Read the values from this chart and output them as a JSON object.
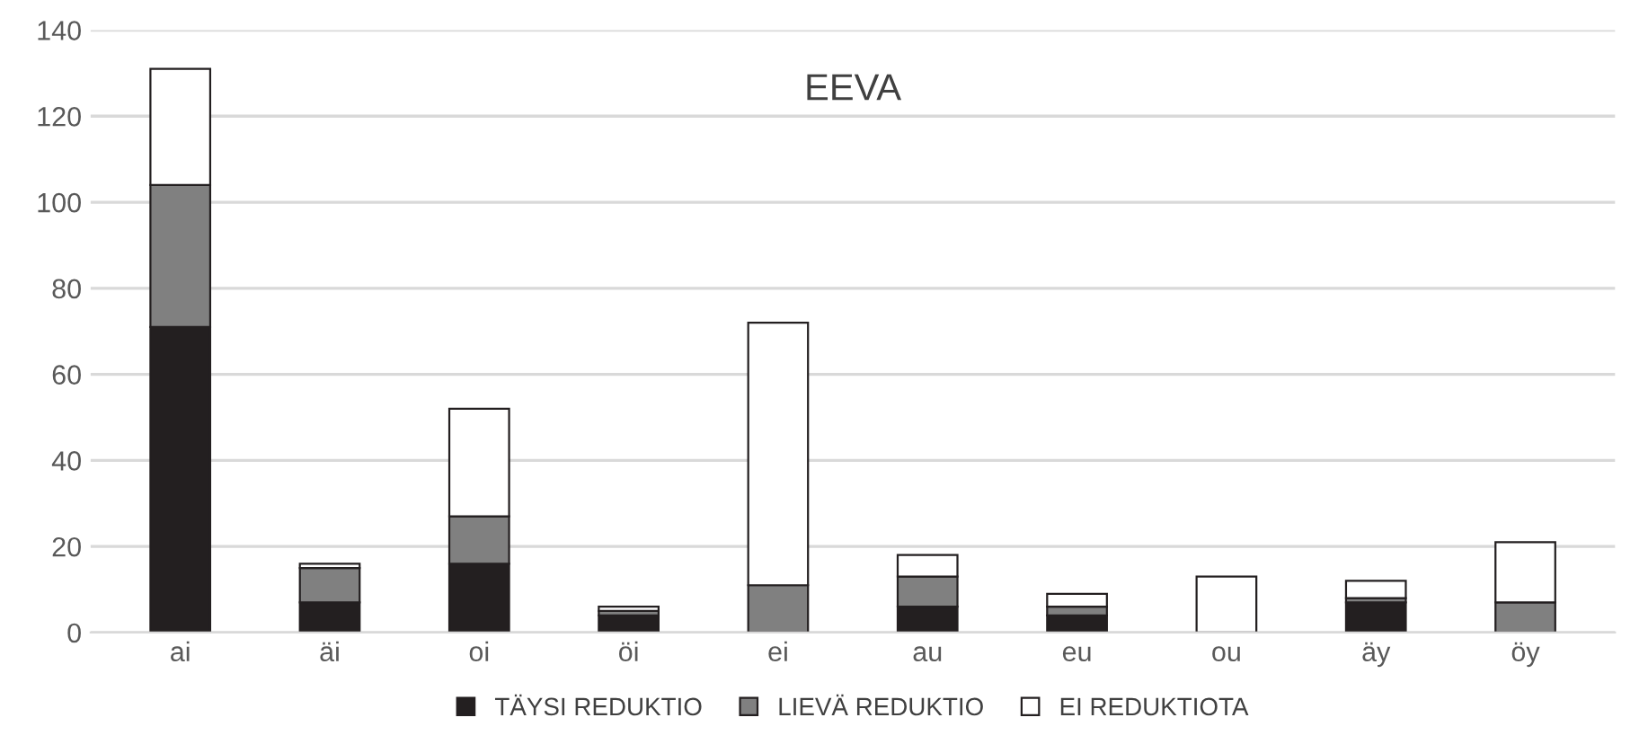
{
  "chart_data": {
    "type": "bar",
    "title": "EEVA",
    "stacked": true,
    "categories": [
      "ai",
      "äi",
      "oi",
      "öi",
      "ei",
      "au",
      "eu",
      "ou",
      "äy",
      "öy"
    ],
    "series": [
      {
        "name": "TÄYSI REDUKTIO",
        "color": "#231f20",
        "values": [
          71,
          7,
          16,
          4,
          0,
          6,
          4,
          0,
          7,
          0
        ]
      },
      {
        "name": "LIEVÄ REDUKTIO",
        "color": "#808080",
        "values": [
          33,
          8,
          11,
          1,
          11,
          7,
          2,
          0,
          1,
          7
        ]
      },
      {
        "name": "EI REDUKTIOTA",
        "color": "#ffffff",
        "values": [
          27,
          1,
          25,
          1,
          61,
          5,
          3,
          13,
          4,
          14
        ]
      }
    ],
    "ylim": [
      0,
      140
    ],
    "yticks": [
      0,
      20,
      40,
      60,
      80,
      100,
      120,
      140
    ],
    "grid": "y",
    "legend": "bottom"
  }
}
